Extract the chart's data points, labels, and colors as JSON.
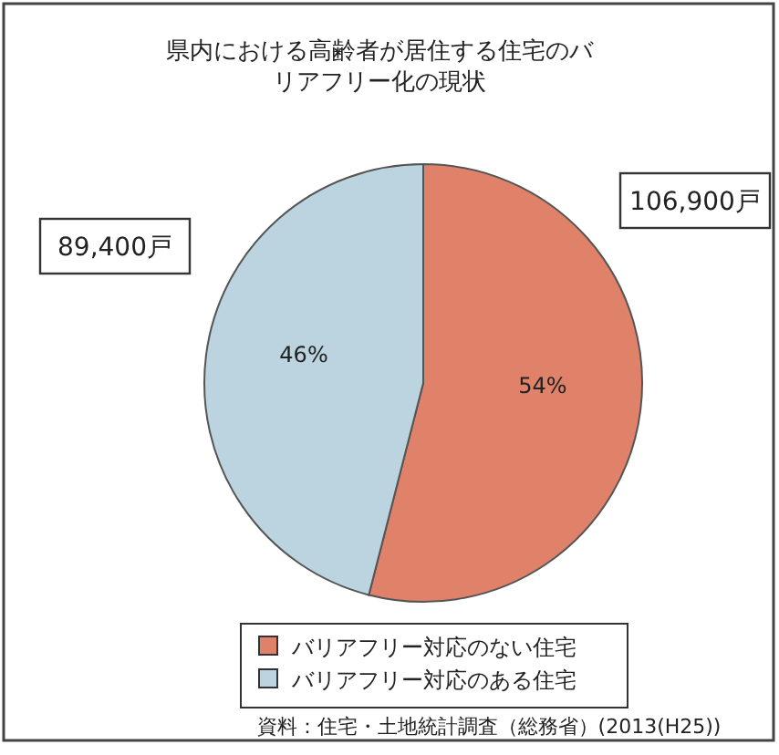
{
  "chart_data": {
    "type": "pie",
    "title": "県内における高齢者が居住する住宅のバリアフリー化の現状",
    "categories": [
      "バリアフリー対応のない住宅",
      "バリアフリー対応のある住宅"
    ],
    "values": [
      54,
      46
    ],
    "colors": [
      "#e0826a",
      "#bcd4e0"
    ],
    "value_labels": [
      "54%",
      "46%"
    ],
    "legend": "bottom",
    "annotations": [
      {
        "text": "106,900戸",
        "x": "バリアフリー対応のない住宅"
      },
      {
        "text": "89,400戸",
        "x": "バリアフリー対応のある住宅"
      },
      "資料：住宅・土地統計調査（総務省）(2013(H25))"
    ]
  }
}
